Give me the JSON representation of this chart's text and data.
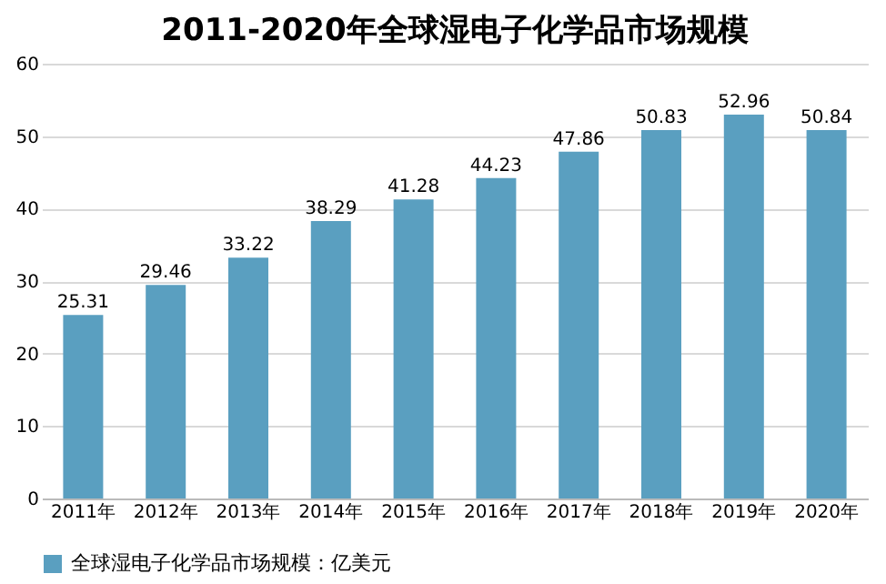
{
  "chart_data": {
    "type": "bar",
    "title": "2011-2020年全球湿电子化学品市场规模",
    "categories": [
      "2011年",
      "2012年",
      "2013年",
      "2014年",
      "2015年",
      "2016年",
      "2017年",
      "2018年",
      "2019年",
      "2020年"
    ],
    "series": [
      {
        "name": "全球湿电子化学品市场规模：亿美元",
        "color": "#5a9fc0",
        "values": [
          25.31,
          29.46,
          33.22,
          38.29,
          41.28,
          44.23,
          47.86,
          50.83,
          52.96,
          50.84
        ]
      }
    ],
    "ylim": [
      0,
      60
    ],
    "yticks": [
      0,
      10,
      20,
      30,
      40,
      50,
      60
    ],
    "grid": "y",
    "legend": "bottom",
    "data_labels": true
  }
}
